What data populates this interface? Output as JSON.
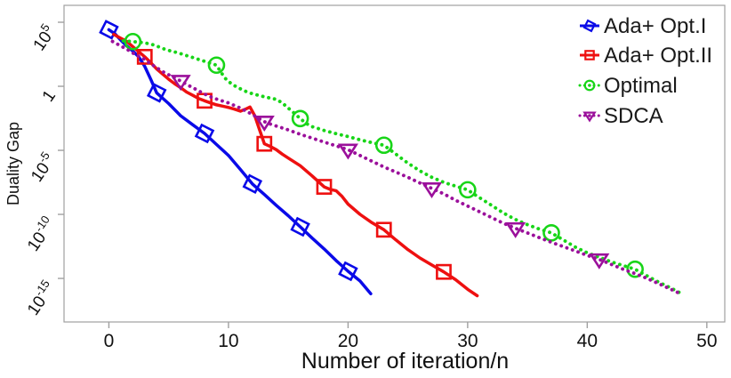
{
  "chart_data": {
    "type": "line",
    "title": "",
    "xlabel": "Number of iteration/n",
    "ylabel": "Duality Gap",
    "x_ticks": [
      0,
      10,
      20,
      30,
      40,
      50
    ],
    "y_ticks": [
      {
        "base": "10",
        "exp": "5",
        "log10": 5
      },
      {
        "base": "1",
        "exp": "",
        "log10": 0
      },
      {
        "base": "10",
        "exp": "-5",
        "log10": -5
      },
      {
        "base": "10",
        "exp": "-10",
        "log10": -10
      },
      {
        "base": "10",
        "exp": "-15",
        "log10": -15
      }
    ],
    "x_range": [
      -3.75,
      51.5
    ],
    "y_log10_range": [
      6.32,
      -18.4
    ],
    "y_scale": "log10",
    "grid": false,
    "legend_position": "top-right-inside",
    "frame_color": "#a0a0a0",
    "text_color": "#111111",
    "series": [
      {
        "id": "ada-opt1",
        "name": "Ada+ Opt.I",
        "color": "#0a0ae8",
        "dash": "solid",
        "marker": "diamond",
        "line": [
          [
            0,
            4.42
          ],
          [
            0.5,
            4.1
          ],
          [
            1,
            3.6
          ],
          [
            1.5,
            3.15
          ],
          [
            2,
            2.75
          ],
          [
            2.5,
            2.3
          ],
          [
            3,
            1.55
          ],
          [
            3.5,
            0.55
          ],
          [
            4,
            -0.51
          ],
          [
            5,
            -1.35
          ],
          [
            6,
            -2.3
          ],
          [
            7,
            -3.0
          ],
          [
            8,
            -3.68
          ],
          [
            9,
            -4.55
          ],
          [
            10,
            -5.4
          ],
          [
            11,
            -6.5
          ],
          [
            12,
            -7.62
          ],
          [
            13,
            -8.45
          ],
          [
            14,
            -9.3
          ],
          [
            15,
            -10.1
          ],
          [
            16,
            -10.97
          ],
          [
            17,
            -11.85
          ],
          [
            18,
            -12.7
          ],
          [
            19,
            -13.6
          ],
          [
            20,
            -14.44
          ],
          [
            21,
            -15.2
          ],
          [
            21.9,
            -16.2
          ]
        ],
        "markers": [
          [
            0,
            4.42
          ],
          [
            4,
            -0.51
          ],
          [
            8,
            -3.68
          ],
          [
            12,
            -7.62
          ],
          [
            16,
            -10.97
          ],
          [
            20,
            -14.44
          ]
        ]
      },
      {
        "id": "ada-opt2",
        "name": "Ada+ Opt.II",
        "color": "#ee1010",
        "dash": "solid",
        "marker": "square",
        "line": [
          [
            0.4,
            4.05
          ],
          [
            1,
            3.75
          ],
          [
            1.5,
            3.5
          ],
          [
            2,
            3.1
          ],
          [
            2.5,
            2.7
          ],
          [
            3,
            2.3
          ],
          [
            3.5,
            1.85
          ],
          [
            4,
            1.35
          ],
          [
            4.5,
            0.95
          ],
          [
            5,
            0.55
          ],
          [
            5.5,
            0.2
          ],
          [
            6,
            -0.1
          ],
          [
            6.5,
            -0.45
          ],
          [
            7,
            -0.7
          ],
          [
            7.5,
            -0.95
          ],
          [
            8,
            -1.13
          ],
          [
            8.5,
            -1.3
          ],
          [
            9,
            -1.45
          ],
          [
            9.5,
            -1.55
          ],
          [
            10,
            -1.65
          ],
          [
            10.5,
            -1.78
          ],
          [
            11,
            -1.94
          ],
          [
            11.4,
            -1.8
          ],
          [
            11.8,
            -1.62
          ],
          [
            12.2,
            -2.3
          ],
          [
            12.6,
            -3.4
          ],
          [
            13,
            -4.49
          ],
          [
            13.5,
            -4.7
          ],
          [
            14,
            -4.95
          ],
          [
            14.5,
            -5.3
          ],
          [
            15,
            -5.6
          ],
          [
            16,
            -6.2
          ],
          [
            17,
            -7.0
          ],
          [
            18,
            -7.85
          ],
          [
            18.5,
            -8.05
          ],
          [
            19,
            -8.15
          ],
          [
            19.5,
            -8.6
          ],
          [
            20,
            -9.2
          ],
          [
            21,
            -10.0
          ],
          [
            22,
            -10.65
          ],
          [
            23,
            -11.2
          ],
          [
            24,
            -12.0
          ],
          [
            25,
            -12.75
          ],
          [
            26,
            -13.4
          ],
          [
            27,
            -13.95
          ],
          [
            28,
            -14.49
          ],
          [
            29,
            -15.1
          ],
          [
            30,
            -15.85
          ],
          [
            30.8,
            -16.35
          ]
        ],
        "markers": [
          [
            3,
            2.3
          ],
          [
            8,
            -1.13
          ],
          [
            13,
            -4.49
          ],
          [
            18,
            -7.85
          ],
          [
            23,
            -11.2
          ],
          [
            28,
            -14.49
          ]
        ]
      },
      {
        "id": "optimal",
        "name": "Optimal",
        "color": "#18d518",
        "dash": "dot",
        "marker": "circle",
        "line": [
          [
            1.2,
            3.55
          ],
          [
            2,
            3.49
          ],
          [
            2.8,
            3.42
          ],
          [
            3.5,
            3.3
          ],
          [
            4,
            3.15
          ],
          [
            4.5,
            2.95
          ],
          [
            5,
            2.8
          ],
          [
            5.5,
            2.68
          ],
          [
            6,
            2.55
          ],
          [
            6.5,
            2.4
          ],
          [
            7,
            2.25
          ],
          [
            7.5,
            2.1
          ],
          [
            8,
            1.95
          ],
          [
            8.5,
            1.8
          ],
          [
            9,
            1.65
          ],
          [
            9.3,
            1.2
          ],
          [
            9.7,
            0.65
          ],
          [
            10,
            0.37
          ],
          [
            10.5,
            0.05
          ],
          [
            11,
            -0.2
          ],
          [
            11.5,
            -0.42
          ],
          [
            12,
            -0.58
          ],
          [
            12.7,
            -0.75
          ],
          [
            13.4,
            -0.9
          ],
          [
            14,
            -1.02
          ],
          [
            14.5,
            -1.3
          ],
          [
            15,
            -1.7
          ],
          [
            15.5,
            -2.1
          ],
          [
            16,
            -2.52
          ],
          [
            16.5,
            -2.9
          ],
          [
            17,
            -3.15
          ],
          [
            17.5,
            -3.3
          ],
          [
            18,
            -3.45
          ],
          [
            19,
            -3.7
          ],
          [
            20,
            -3.92
          ],
          [
            21,
            -4.18
          ],
          [
            22,
            -4.4
          ],
          [
            23,
            -4.6
          ],
          [
            23.5,
            -4.95
          ],
          [
            24,
            -5.3
          ],
          [
            24.5,
            -5.65
          ],
          [
            25,
            -6.0
          ],
          [
            25.5,
            -6.3
          ],
          [
            26,
            -6.6
          ],
          [
            27,
            -7.1
          ],
          [
            28,
            -7.5
          ],
          [
            29,
            -7.8
          ],
          [
            30,
            -8.08
          ],
          [
            30.5,
            -8.4
          ],
          [
            31,
            -8.7
          ],
          [
            32,
            -9.3
          ],
          [
            33,
            -9.9
          ],
          [
            34,
            -10.4
          ],
          [
            35,
            -10.8
          ],
          [
            36,
            -11.15
          ],
          [
            37,
            -11.44
          ],
          [
            38,
            -12.0
          ],
          [
            39,
            -12.55
          ],
          [
            40,
            -13.0
          ],
          [
            41,
            -13.35
          ],
          [
            42,
            -13.7
          ],
          [
            43,
            -14.0
          ],
          [
            44,
            -14.28
          ],
          [
            45,
            -14.8
          ],
          [
            46,
            -15.3
          ],
          [
            47,
            -15.75
          ],
          [
            47.8,
            -16.15
          ]
        ],
        "markers": [
          [
            2,
            3.49
          ],
          [
            9,
            1.65
          ],
          [
            16,
            -2.52
          ],
          [
            23,
            -4.6
          ],
          [
            30,
            -8.08
          ],
          [
            37,
            -11.44
          ],
          [
            44,
            -14.28
          ]
        ]
      },
      {
        "id": "sdca",
        "name": "SDCA",
        "color": "#9b109b",
        "dash": "dot",
        "marker": "triangle-down",
        "line": [
          [
            0.3,
            3.5
          ],
          [
            1,
            3.15
          ],
          [
            1.5,
            2.9
          ],
          [
            2,
            2.6
          ],
          [
            2.5,
            2.35
          ],
          [
            3,
            2.1
          ],
          [
            3.5,
            1.75
          ],
          [
            4,
            1.45
          ],
          [
            4.5,
            1.15
          ],
          [
            5,
            0.9
          ],
          [
            5.5,
            0.65
          ],
          [
            6,
            0.42
          ],
          [
            6.5,
            0.15
          ],
          [
            7,
            -0.1
          ],
          [
            7.5,
            -0.35
          ],
          [
            8,
            -0.6
          ],
          [
            8.5,
            -0.82
          ],
          [
            9,
            -1.0
          ],
          [
            9.5,
            -1.15
          ],
          [
            10,
            -1.3
          ],
          [
            10.5,
            -1.5
          ],
          [
            11,
            -1.7
          ],
          [
            11.5,
            -1.95
          ],
          [
            12,
            -2.2
          ],
          [
            12.5,
            -2.5
          ],
          [
            13,
            -2.76
          ],
          [
            13.5,
            -2.95
          ],
          [
            14,
            -3.1
          ],
          [
            15,
            -3.4
          ],
          [
            16,
            -3.75
          ],
          [
            17,
            -4.05
          ],
          [
            18,
            -4.35
          ],
          [
            19,
            -4.65
          ],
          [
            20,
            -4.95
          ],
          [
            21,
            -5.4
          ],
          [
            22,
            -5.85
          ],
          [
            23,
            -6.3
          ],
          [
            24,
            -6.7
          ],
          [
            25,
            -7.1
          ],
          [
            26,
            -7.55
          ],
          [
            27,
            -7.97
          ],
          [
            28,
            -8.4
          ],
          [
            29,
            -8.9
          ],
          [
            30,
            -9.35
          ],
          [
            31,
            -9.8
          ],
          [
            32,
            -10.25
          ],
          [
            33,
            -10.7
          ],
          [
            34,
            -11.09
          ],
          [
            35,
            -11.45
          ],
          [
            36,
            -11.82
          ],
          [
            37,
            -12.18
          ],
          [
            38,
            -12.52
          ],
          [
            39,
            -12.85
          ],
          [
            40,
            -13.2
          ],
          [
            41,
            -13.52
          ],
          [
            42,
            -13.9
          ],
          [
            43,
            -14.28
          ],
          [
            44,
            -14.62
          ],
          [
            45,
            -15.0
          ],
          [
            46,
            -15.42
          ],
          [
            47,
            -15.85
          ],
          [
            47.8,
            -16.2
          ]
        ],
        "markers": [
          [
            6,
            0.42
          ],
          [
            13,
            -2.76
          ],
          [
            20,
            -4.95
          ],
          [
            27,
            -7.97
          ],
          [
            34,
            -11.09
          ],
          [
            41,
            -13.52
          ]
        ]
      }
    ],
    "legend": [
      {
        "label": "Ada+ Opt.I"
      },
      {
        "label": "Ada+ Opt.II"
      },
      {
        "label": "Optimal"
      },
      {
        "label": "SDCA"
      }
    ]
  }
}
